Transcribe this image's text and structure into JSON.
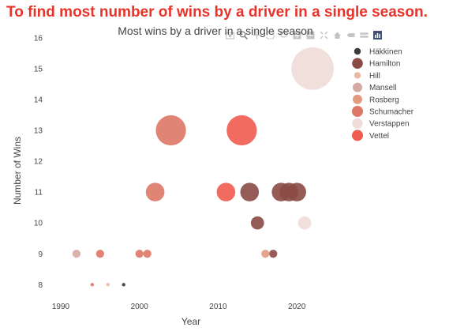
{
  "page": {
    "heading": "To find most number of wins by a driver in a single season."
  },
  "modebar": {
    "icons": [
      "camera-icon",
      "zoom-icon",
      "pan-icon",
      "box-select-icon",
      "lasso-select-icon",
      "zoom-in-icon",
      "zoom-out-icon",
      "autoscale-icon",
      "reset-axes-icon",
      "spike-lines-icon",
      "hover-closest-icon",
      "hover-compare-icon",
      "plotly-logo-icon"
    ]
  },
  "colors": {
    "Häkkinen": "#3b3b3b",
    "Hamilton": "#8a4a45",
    "Hill": "#ebb9a3",
    "Mansell": "#d5a9a4",
    "Rosberg": "#e49a80",
    "Schumacher": "#dd7767",
    "Verstappen": "#efdcd8",
    "Vettel": "#ef5b50"
  },
  "chart_data": {
    "type": "scatter",
    "title": "Most wins by a driver in a single season",
    "xlabel": "Year",
    "ylabel": "Number of Wins",
    "xlim": [
      1988.6,
      2025.6
    ],
    "ylim": [
      7.65,
      16.2
    ],
    "xticks": [
      1990,
      2000,
      2010,
      2020
    ],
    "yticks": [
      8,
      9,
      10,
      11,
      12,
      13,
      14,
      15,
      16
    ],
    "grid": false,
    "legend": "top-right",
    "series": [
      {
        "name": "Häkkinen",
        "points": [
          {
            "x": 1998,
            "y": 8
          }
        ]
      },
      {
        "name": "Hamilton",
        "points": [
          {
            "x": 2014,
            "y": 11
          },
          {
            "x": 2015,
            "y": 10
          },
          {
            "x": 2017,
            "y": 9
          },
          {
            "x": 2018,
            "y": 11
          },
          {
            "x": 2019,
            "y": 11
          },
          {
            "x": 2020,
            "y": 11
          }
        ]
      },
      {
        "name": "Hill",
        "points": [
          {
            "x": 1996,
            "y": 8
          }
        ]
      },
      {
        "name": "Mansell",
        "points": [
          {
            "x": 1992,
            "y": 9
          }
        ]
      },
      {
        "name": "Rosberg",
        "points": [
          {
            "x": 2016,
            "y": 9
          }
        ]
      },
      {
        "name": "Schumacher",
        "points": [
          {
            "x": 1994,
            "y": 8
          },
          {
            "x": 1995,
            "y": 9
          },
          {
            "x": 2000,
            "y": 9
          },
          {
            "x": 2001,
            "y": 9
          },
          {
            "x": 2002,
            "y": 11
          },
          {
            "x": 2004,
            "y": 13
          }
        ]
      },
      {
        "name": "Verstappen",
        "points": [
          {
            "x": 2021,
            "y": 10
          },
          {
            "x": 2022,
            "y": 15
          }
        ]
      },
      {
        "name": "Vettel",
        "points": [
          {
            "x": 2011,
            "y": 11
          },
          {
            "x": 2013,
            "y": 13
          }
        ]
      }
    ]
  }
}
